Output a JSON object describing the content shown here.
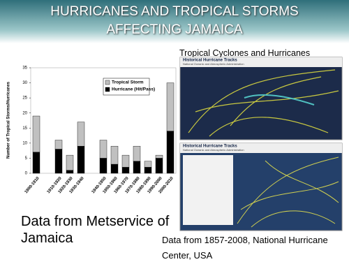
{
  "header": {
    "title": "HURRICANES AND TROPICAL STORMS AFFECTING JAMAICA"
  },
  "chart_data": {
    "type": "stacked-bar",
    "y_label": "Number of Tropical Storms/Hurricanes",
    "categories": [
      "1900-1910",
      null,
      "1910-1920",
      "1920-1930",
      "1930-1940",
      null,
      "1940-1950",
      "1950-1960",
      "1960-1970",
      "1970-1980",
      "1980-1990",
      "1990-2000",
      "2000-2010"
    ],
    "series": [
      {
        "name": "Hurricane (Hit/Pass)",
        "color": "#000000",
        "values": [
          7,
          0,
          8,
          1,
          9,
          0,
          5,
          3,
          2,
          4,
          2,
          5,
          14
        ]
      },
      {
        "name": "Tropical Storm",
        "color": "#c0c0c0",
        "values": [
          12,
          0,
          3,
          5,
          8,
          0,
          6,
          6,
          4,
          5,
          2,
          1,
          16
        ]
      }
    ],
    "ylim": [
      0,
      35
    ],
    "yticks": [
      0,
      5,
      10,
      15,
      20,
      25,
      30,
      35
    ]
  },
  "screenshots": {
    "caption": "Tropical Cyclones and Hurricanes",
    "items": [
      {
        "title": "Historical Hurricane Tracks",
        "subtitle": "National Oceanic and Atmospheric Administration"
      },
      {
        "title": "Historical Hurricane Tracks",
        "subtitle": "National Oceanic and Atmospheric Administration"
      }
    ]
  },
  "notes": {
    "left": "Data from Metservice of Jamaica",
    "right": "Data from 1857-2008, National Hurricane Center, USA"
  }
}
